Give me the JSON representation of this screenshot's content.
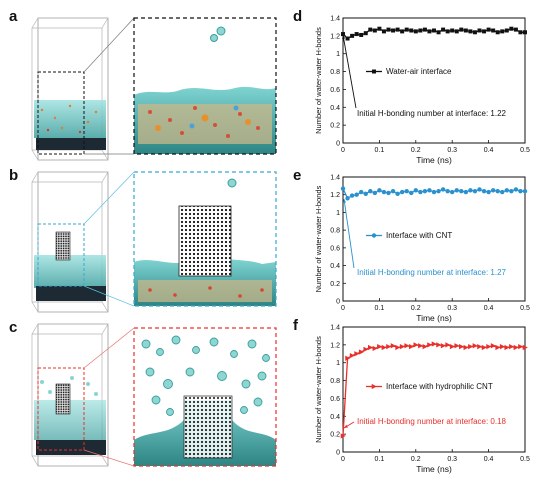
{
  "panel_labels": [
    "a",
    "b",
    "c",
    "d",
    "e",
    "f"
  ],
  "colors": {
    "water_blue": "#5fbfbe",
    "water_dark": "#2f8f8f",
    "series_d": "#111111",
    "series_e": "#2a91d0",
    "series_f": "#e8302a",
    "box_d": "#111111",
    "box_e": "#36a9d6",
    "box_f": "#e8302a"
  },
  "chart_data": [
    {
      "type": "line",
      "panel": "d",
      "xlabel": "Time (ns)",
      "ylabel": "Number of water-water H-bonds",
      "xlim": [
        0,
        0.5
      ],
      "ylim": [
        0,
        1.4
      ],
      "xticks": [
        "0",
        "0.1",
        "0.2",
        "0.3",
        "0.4",
        "0.5"
      ],
      "yticks": [
        "0",
        "0.2",
        "0.4",
        "0.6",
        "0.8",
        "1",
        "1.2",
        "1.4"
      ],
      "marker": "square",
      "series": [
        {
          "name": "Water-air interface",
          "x": [
            0,
            0.0125,
            0.025,
            0.0375,
            0.05,
            0.0625,
            0.075,
            0.0875,
            0.1,
            0.1125,
            0.125,
            0.1375,
            0.15,
            0.1625,
            0.175,
            0.1875,
            0.2,
            0.2125,
            0.225,
            0.2375,
            0.25,
            0.2625,
            0.275,
            0.2875,
            0.3,
            0.3125,
            0.325,
            0.3375,
            0.35,
            0.3625,
            0.375,
            0.3875,
            0.4,
            0.4125,
            0.425,
            0.4375,
            0.45,
            0.4625,
            0.475,
            0.4875,
            0.5
          ],
          "values": [
            1.22,
            1.17,
            1.2,
            1.22,
            1.21,
            1.23,
            1.27,
            1.26,
            1.28,
            1.25,
            1.27,
            1.26,
            1.27,
            1.25,
            1.27,
            1.26,
            1.25,
            1.26,
            1.27,
            1.25,
            1.26,
            1.24,
            1.27,
            1.25,
            1.26,
            1.25,
            1.27,
            1.26,
            1.25,
            1.24,
            1.26,
            1.25,
            1.27,
            1.26,
            1.24,
            1.25,
            1.26,
            1.28,
            1.27,
            1.24,
            1.24
          ]
        }
      ],
      "annotation": "Initial H-bonding number at interface: 1.22",
      "legend": "center-right"
    },
    {
      "type": "line",
      "panel": "e",
      "xlabel": "Time (ns)",
      "ylabel": "Number of water-water H-bonds",
      "xlim": [
        0,
        0.5
      ],
      "ylim": [
        0,
        1.4
      ],
      "xticks": [
        "0",
        "0.1",
        "0.2",
        "0.3",
        "0.4",
        "0.5"
      ],
      "yticks": [
        "0",
        "0.2",
        "0.4",
        "0.6",
        "0.8",
        "1",
        "1.2",
        "1.4"
      ],
      "marker": "circle",
      "series": [
        {
          "name": "Interface with CNT",
          "x": [
            0,
            0.0125,
            0.025,
            0.0375,
            0.05,
            0.0625,
            0.075,
            0.0875,
            0.1,
            0.1125,
            0.125,
            0.1375,
            0.15,
            0.1625,
            0.175,
            0.1875,
            0.2,
            0.2125,
            0.225,
            0.2375,
            0.25,
            0.2625,
            0.275,
            0.2875,
            0.3,
            0.3125,
            0.325,
            0.3375,
            0.35,
            0.3625,
            0.375,
            0.3875,
            0.4,
            0.4125,
            0.425,
            0.4375,
            0.45,
            0.4625,
            0.475,
            0.4875,
            0.5
          ],
          "values": [
            1.27,
            1.16,
            1.19,
            1.2,
            1.23,
            1.21,
            1.24,
            1.22,
            1.25,
            1.23,
            1.22,
            1.24,
            1.21,
            1.23,
            1.24,
            1.22,
            1.25,
            1.23,
            1.24,
            1.25,
            1.23,
            1.24,
            1.26,
            1.24,
            1.23,
            1.25,
            1.24,
            1.23,
            1.25,
            1.24,
            1.26,
            1.24,
            1.23,
            1.25,
            1.24,
            1.23,
            1.25,
            1.24,
            1.26,
            1.24,
            1.24
          ]
        }
      ],
      "annotation": "Initial H-bonding number at interface: 1.27",
      "legend": "center-right"
    },
    {
      "type": "line",
      "panel": "f",
      "xlabel": "Time (ns)",
      "ylabel": "Number of water-water H-bonds",
      "xlim": [
        0,
        0.5
      ],
      "ylim": [
        0,
        1.4
      ],
      "xticks": [
        "0",
        "0.1",
        "0.2",
        "0.3",
        "0.4",
        "0.5"
      ],
      "yticks": [
        "0",
        "0.2",
        "0.4",
        "0.6",
        "0.8",
        "1",
        "1.2",
        "1.4"
      ],
      "marker": "triangle-right",
      "series": [
        {
          "name": "Interface with hydrophilic CNT",
          "x": [
            0,
            0.0125,
            0.025,
            0.0375,
            0.05,
            0.0625,
            0.075,
            0.0875,
            0.1,
            0.1125,
            0.125,
            0.1375,
            0.15,
            0.1625,
            0.175,
            0.1875,
            0.2,
            0.2125,
            0.225,
            0.2375,
            0.25,
            0.2625,
            0.275,
            0.2875,
            0.3,
            0.3125,
            0.325,
            0.3375,
            0.35,
            0.3625,
            0.375,
            0.3875,
            0.4,
            0.4125,
            0.425,
            0.4375,
            0.45,
            0.4625,
            0.475,
            0.4875,
            0.5
          ],
          "values": [
            0.18,
            1.05,
            1.08,
            1.1,
            1.12,
            1.15,
            1.17,
            1.16,
            1.18,
            1.17,
            1.18,
            1.19,
            1.17,
            1.18,
            1.19,
            1.18,
            1.2,
            1.19,
            1.18,
            1.2,
            1.21,
            1.2,
            1.19,
            1.2,
            1.18,
            1.19,
            1.18,
            1.17,
            1.18,
            1.19,
            1.18,
            1.17,
            1.18,
            1.19,
            1.17,
            1.18,
            1.17,
            1.18,
            1.17,
            1.18,
            1.17
          ]
        }
      ],
      "annotation": "Initial H-bonding number at interface: 0.18",
      "legend": "center-right"
    }
  ]
}
